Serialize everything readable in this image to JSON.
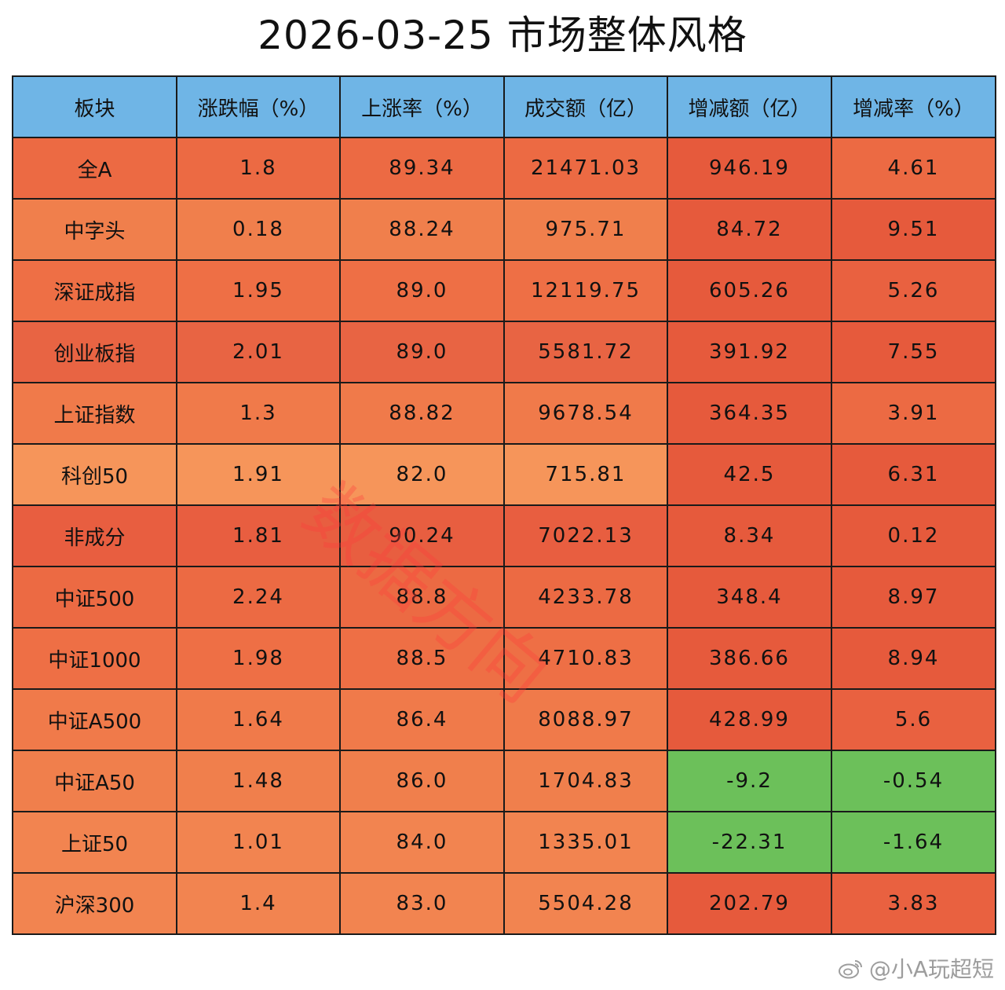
{
  "title": "2026-03-25 市场整体风格",
  "chart_data": {
    "type": "table",
    "columns": [
      "板块",
      "涨跌幅（%）",
      "上涨率（%）",
      "成交额（亿）",
      "增减额（亿）",
      "增减率（%）"
    ],
    "rows": [
      [
        "全A",
        "1.8",
        "89.34",
        "21471.03",
        "946.19",
        "4.61"
      ],
      [
        "中字头",
        "0.18",
        "88.24",
        "975.71",
        "84.72",
        "9.51"
      ],
      [
        "深证成指",
        "1.95",
        "89.0",
        "12119.75",
        "605.26",
        "5.26"
      ],
      [
        "创业板指",
        "2.01",
        "89.0",
        "5581.72",
        "391.92",
        "7.55"
      ],
      [
        "上证指数",
        "1.3",
        "88.82",
        "9678.54",
        "364.35",
        "3.91"
      ],
      [
        "科创50",
        "1.91",
        "82.0",
        "715.81",
        "42.5",
        "6.31"
      ],
      [
        "非成分",
        "1.81",
        "90.24",
        "7022.13",
        "8.34",
        "0.12"
      ],
      [
        "中证500",
        "2.24",
        "88.8",
        "4233.78",
        "348.4",
        "8.97"
      ],
      [
        "中证1000",
        "1.98",
        "88.5",
        "4710.83",
        "386.66",
        "8.94"
      ],
      [
        "中证A500",
        "1.64",
        "86.4",
        "8088.97",
        "428.99",
        "5.6"
      ],
      [
        "中证A50",
        "1.48",
        "86.0",
        "1704.83",
        "-9.2",
        "-0.54"
      ],
      [
        "上证50",
        "1.01",
        "84.0",
        "1335.01",
        "-22.31",
        "-1.64"
      ],
      [
        "沪深300",
        "1.4",
        "83.0",
        "5504.28",
        "202.79",
        "3.83"
      ]
    ],
    "row_fill_colors": [
      [
        "#ec6a43",
        "#ec6a43",
        "#ec6a43",
        "#ec6a43",
        "#e65a3c",
        "#ec6a43"
      ],
      [
        "#f07f4c",
        "#f07f4c",
        "#f07f4c",
        "#f07f4c",
        "#e65a3c",
        "#e65a3c"
      ],
      [
        "#ee6f45",
        "#ee6f45",
        "#ee6f45",
        "#ee6f45",
        "#e65a3c",
        "#e96140"
      ],
      [
        "#e86443",
        "#e86443",
        "#e86443",
        "#e86443",
        "#e65a3c",
        "#e65a3c"
      ],
      [
        "#f07a4a",
        "#f07a4a",
        "#f07a4a",
        "#f07a4a",
        "#e65a3c",
        "#ec6a43"
      ],
      [
        "#f6955a",
        "#f6955a",
        "#f6955a",
        "#f6955a",
        "#e65a3c",
        "#e65a3c"
      ],
      [
        "#e85e40",
        "#e85e40",
        "#e85e40",
        "#e85e40",
        "#e65a3c",
        "#e65a3c"
      ],
      [
        "#ec6a43",
        "#ec6a43",
        "#ec6a43",
        "#ec6a43",
        "#e65a3c",
        "#e65a3c"
      ],
      [
        "#ee6f45",
        "#ee6f45",
        "#ee6f45",
        "#ee6f45",
        "#e65a3c",
        "#e65a3c"
      ],
      [
        "#f07a4a",
        "#f07a4a",
        "#f07a4a",
        "#f07a4a",
        "#e65a3c",
        "#e96140"
      ],
      [
        "#f07f4c",
        "#f07f4c",
        "#f07f4c",
        "#f07f4c",
        "#6cc05a",
        "#6cc05a"
      ],
      [
        "#f28450",
        "#f28450",
        "#f28450",
        "#f28450",
        "#6cc05a",
        "#6cc05a"
      ],
      [
        "#f28450",
        "#f28450",
        "#f28450",
        "#f28450",
        "#e65a3c",
        "#e96140"
      ]
    ],
    "header_fill_color": "#6fb5e6"
  },
  "watermark": "数据方向",
  "credit": "@小A玩超短"
}
